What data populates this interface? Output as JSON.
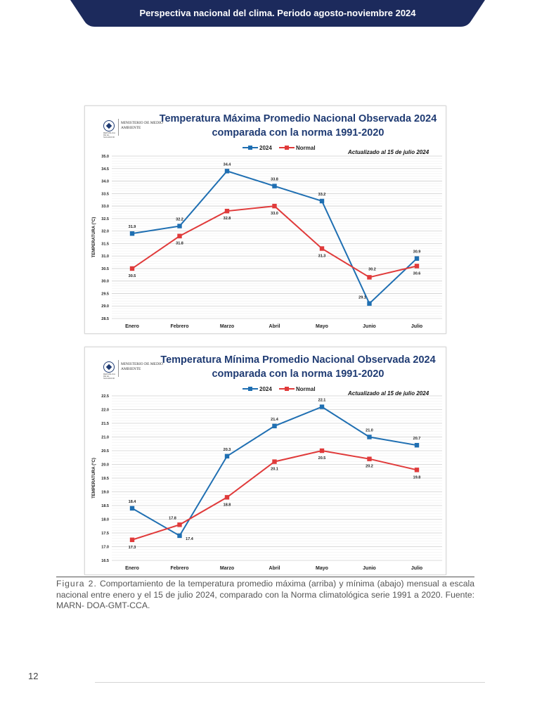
{
  "header": {
    "title": "Perspectiva nacional del clima. Periodo agosto-noviembre 2024"
  },
  "logo": {
    "name": "MINISTERIO DE MEDIO AMBIENTE",
    "seal_caption": "REPÚBLICA DE EL SALVADOR"
  },
  "chart_data": [
    {
      "type": "line",
      "title": "Temperatura Máxima Promedio Nacional Observada 2024",
      "subtitle": "comparada con la norma 1991-2020",
      "annotation": "Actualizado al 15 de julio 2024",
      "xlabel": "",
      "ylabel": "TEMPERATURA (°C)",
      "categories": [
        "Enero",
        "Febrero",
        "Marzo",
        "Abril",
        "Mayo",
        "Junio",
        "Julio"
      ],
      "ylim": [
        28.5,
        35.0
      ],
      "ytick_step": 0.5,
      "yticks": [
        "28.5",
        "29.0",
        "29.5",
        "30.0",
        "30.5",
        "31.0",
        "31.5",
        "32.0",
        "32.5",
        "33.0",
        "33.5",
        "34.0",
        "34.5",
        "35.0"
      ],
      "series": [
        {
          "name": "2024",
          "color": "#1f6fb2",
          "values": [
            31.9,
            32.2,
            34.4,
            33.8,
            33.2,
            29.1,
            30.9
          ],
          "labels": [
            "31.9",
            "32.2",
            "34.4",
            "33.8",
            "33.2",
            "29.1",
            "30.9"
          ]
        },
        {
          "name": "Normal",
          "color": "#e03a3a",
          "values": [
            30.5,
            31.8,
            32.8,
            33.0,
            31.3,
            30.15,
            30.6
          ],
          "labels": [
            "30.5",
            "31.8",
            "32.8",
            "33.0",
            "31.3",
            "30.2",
            "30.6"
          ]
        }
      ],
      "legend_position": "top-center",
      "grid": true
    },
    {
      "type": "line",
      "title": "Temperatura Mínima Promedio Nacional Observada 2024",
      "subtitle": "comparada con la norma 1991-2020",
      "annotation": "Actualizado al 15 de julio 2024",
      "xlabel": "",
      "ylabel": "TEMPERATURA (°C)",
      "categories": [
        "Enero",
        "Febrero",
        "Marzo",
        "Abril",
        "Mayo",
        "Junio",
        "Julio"
      ],
      "ylim": [
        16.5,
        22.5
      ],
      "ytick_step": 0.5,
      "yticks": [
        "16.5",
        "17.0",
        "17.5",
        "18.0",
        "18.5",
        "19.0",
        "19.5",
        "20.0",
        "20.5",
        "21.0",
        "21.5",
        "22.0",
        "22.5"
      ],
      "series": [
        {
          "name": "2024",
          "color": "#1f6fb2",
          "values": [
            18.4,
            17.4,
            20.3,
            21.4,
            22.1,
            21.0,
            20.7
          ],
          "labels": [
            "18.4",
            "17.4",
            "20.3",
            "21.4",
            "22.1",
            "21.0",
            "20.7"
          ]
        },
        {
          "name": "Normal",
          "color": "#e03a3a",
          "values": [
            17.25,
            17.8,
            18.8,
            20.1,
            20.5,
            20.2,
            19.8
          ],
          "labels": [
            "17.3",
            "17.8",
            "18.8",
            "20.1",
            "20.5",
            "20.2",
            "19.8"
          ]
        }
      ],
      "legend_position": "top-center",
      "grid": true
    }
  ],
  "caption": {
    "label": "Figura 2.",
    "text": "Comportamiento de la temperatura promedio máxima (arriba) y mínima (abajo) mensual a escala nacional entre enero y el 15 de julio 2024, comparado con la Norma climatológica serie 1991 a 2020. Fuente: MARN- DOA-GMT-CCA."
  },
  "page_number": "12",
  "colors": {
    "banner": "#1c2a5c",
    "series_2024": "#1f6fb2",
    "series_normal": "#e03a3a",
    "title": "#1f3b73"
  }
}
